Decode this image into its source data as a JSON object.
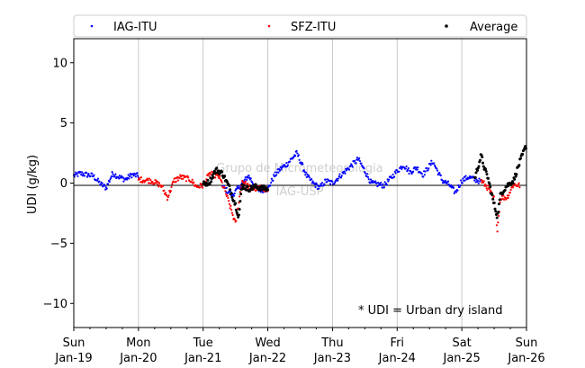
{
  "chart_data": {
    "type": "scatter",
    "title": "",
    "xlabel": "",
    "ylabel": "UDI (g/kg)",
    "ylim": [
      -12,
      12
    ],
    "xlim": [
      "2020-01-19",
      "2020-01-26"
    ],
    "grid": "vertical lines at day ticks",
    "legend_position": "top (above plot, full width)",
    "watermark": [
      "Grupo de Micrometeorologia",
      "IAG-USP"
    ],
    "annotation": "* UDI = Urban dry island",
    "yticks": [
      "−10",
      "−5",
      "0",
      "5",
      "10"
    ],
    "xticks": [
      {
        "day": "Sun",
        "date": "Jan-19"
      },
      {
        "day": "Mon",
        "date": "Jan-20"
      },
      {
        "day": "Tue",
        "date": "Jan-21"
      },
      {
        "day": "Wed",
        "date": "Jan-22"
      },
      {
        "day": "Thu",
        "date": "Jan-23"
      },
      {
        "day": "Fri",
        "date": "Jan-24"
      },
      {
        "day": "Sat",
        "date": "Jan-25"
      },
      {
        "day": "Sun",
        "date": "Jan-26"
      }
    ],
    "series": [
      {
        "name": "IAG-ITU",
        "color": "#0000ff",
        "segments": [
          {
            "x": [
              0.0,
              0.1,
              0.2,
              0.3,
              0.4,
              0.5,
              0.6,
              0.7,
              0.8,
              0.9,
              1.0
            ],
            "y": [
              0.6,
              0.8,
              0.7,
              0.6,
              0.0,
              -0.4,
              0.8,
              0.5,
              0.3,
              0.7,
              0.6
            ]
          },
          {
            "x": [
              2.3,
              2.45,
              2.55,
              2.7,
              2.85,
              3.0,
              3.1,
              3.2,
              3.3,
              3.45,
              3.6,
              3.7,
              3.8,
              3.9,
              4.0,
              4.2,
              4.4,
              4.6,
              4.8,
              5.0,
              5.1,
              5.2,
              5.3,
              5.4,
              5.55,
              5.7,
              5.8,
              5.9,
              6.0,
              6.1,
              6.2,
              6.3
            ],
            "y": [
              -0.3,
              -1.0,
              -0.4,
              0.6,
              -0.6,
              -0.5,
              0.6,
              1.2,
              1.6,
              2.5,
              0.6,
              0.0,
              -0.4,
              0.2,
              0.0,
              1.0,
              2.0,
              0.0,
              -0.2,
              1.0,
              1.5,
              0.9,
              1.3,
              0.7,
              1.8,
              0.2,
              -0.1,
              -0.8,
              0.2,
              0.5,
              0.3,
              0.1
            ]
          }
        ]
      },
      {
        "name": "SFZ-ITU",
        "color": "#ff0000",
        "segments": [
          {
            "x": [
              1.0,
              1.2,
              1.35,
              1.45,
              1.55,
              1.65,
              1.8,
              1.9,
              2.0
            ],
            "y": [
              0.3,
              0.2,
              -0.2,
              -1.2,
              0.2,
              0.5,
              0.3,
              -0.3,
              -0.2
            ]
          },
          {
            "x": [
              2.0,
              2.1,
              2.25,
              2.35,
              2.45,
              2.5,
              2.6,
              2.75,
              2.9,
              3.0
            ],
            "y": [
              -0.2,
              0.8,
              0.5,
              -0.8,
              -2.5,
              -3.4,
              0.2,
              -0.5,
              -0.4,
              -0.6
            ]
          },
          {
            "x": [
              6.3,
              6.4,
              6.5,
              6.55,
              6.6,
              6.7,
              6.8,
              6.9
            ],
            "y": [
              0.2,
              -0.4,
              -1.3,
              -3.8,
              -1.2,
              -1.2,
              -0.1,
              -0.2
            ]
          }
        ]
      },
      {
        "name": "Average",
        "color": "#000000",
        "segments": [
          {
            "x": [
              2.0,
              2.1,
              2.2,
              2.3,
              2.4,
              2.5,
              2.55,
              2.6,
              2.7,
              2.8,
              2.9,
              3.0
            ],
            "y": [
              -0.1,
              0.1,
              1.1,
              0.8,
              -0.3,
              -1.8,
              -2.8,
              -0.2,
              -0.5,
              -0.3,
              -0.4,
              -0.5
            ]
          },
          {
            "x": [
              6.2,
              6.3,
              6.35,
              6.4,
              6.5,
              6.55,
              6.6,
              6.7,
              6.8,
              6.9,
              7.0
            ],
            "y": [
              0.4,
              2.3,
              1.2,
              0.5,
              -1.8,
              -2.8,
              -0.9,
              -0.2,
              0.2,
              1.8,
              3.2
            ]
          }
        ]
      }
    ]
  }
}
